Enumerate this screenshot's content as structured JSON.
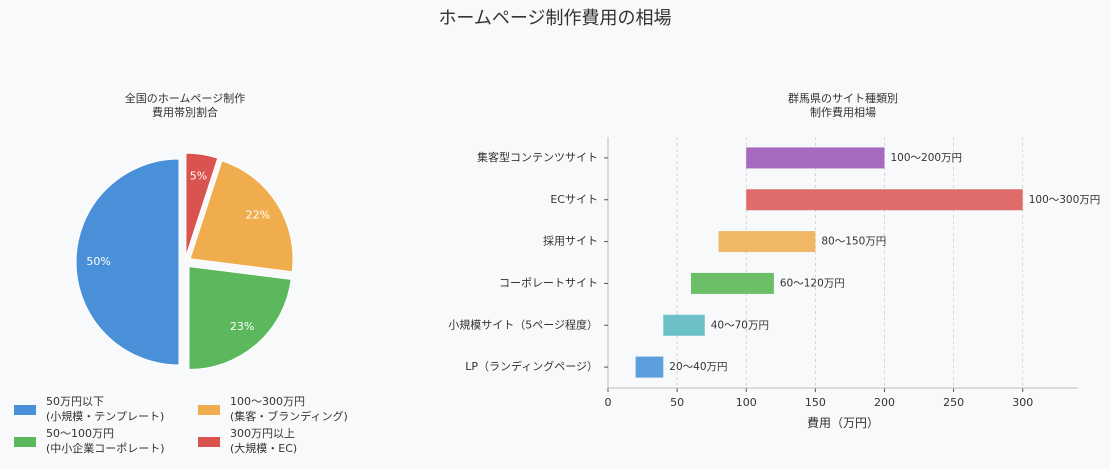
{
  "title": "ホームページ制作費用の相場",
  "chart_data": [
    {
      "type": "pie",
      "title": "全国のホームページ制作\n費用帯別割合",
      "categories": [
        "50万円以下\n(小規模・テンプレート)",
        "50〜100万円\n(中小企業コーポレート)",
        "100〜300万円\n(集客・ブランディング)",
        "300万円以上\n(大規模・EC)"
      ],
      "values": [
        50,
        23,
        22,
        5
      ],
      "value_labels": [
        "50%",
        "23%",
        "22%",
        "5%"
      ],
      "colors": [
        "#4a90d9",
        "#5cb85c",
        "#f0ad4e",
        "#d9534f"
      ],
      "legend": "bottom"
    },
    {
      "type": "range_bar",
      "title": "群馬県のサイト種類別\n制作費用相場",
      "categories": [
        "集客型コンテンツサイト",
        "ECサイト",
        "採用サイト",
        "コーポレートサイト",
        "小規模サイト（5ページ程度）",
        "LP（ランディングページ）"
      ],
      "starts": [
        100,
        100,
        80,
        60,
        40,
        20
      ],
      "ends": [
        200,
        300,
        150,
        120,
        70,
        40
      ],
      "value_labels": [
        "100〜200万円",
        "100〜300万円",
        "80〜150万円",
        "60〜120万円",
        "40〜70万円",
        "20〜40万円"
      ],
      "colors": [
        "#a569bd",
        "#e06b6b",
        "#f0b865",
        "#6cbf66",
        "#6cc1c8",
        "#5b9fdc"
      ],
      "xlabel": "費用（万円）",
      "xlim": [
        0,
        340
      ],
      "xticks": [
        0,
        50,
        100,
        150,
        200,
        250,
        300
      ],
      "grid": true
    }
  ]
}
